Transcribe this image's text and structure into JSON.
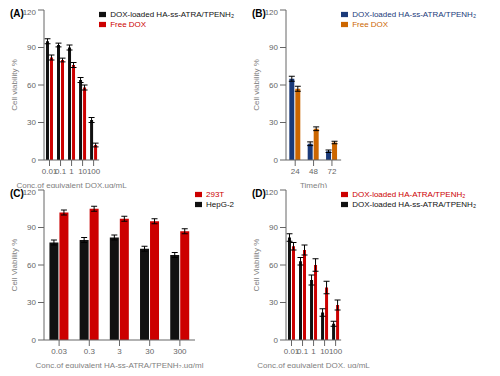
{
  "chart_data": [
    {
      "type": "bar",
      "title": "(A)",
      "xlabel": "Conc.of equivalent DOX.ug/mL",
      "ylabel": "Cell viability %",
      "categories": [
        "0.01",
        "0.1",
        "1",
        "10",
        "100"
      ],
      "series": [
        {
          "name": "DOX-loaded HA-ss-ATRA/TPENH₂",
          "color": "#111111",
          "values": [
            95,
            92,
            90,
            64,
            32
          ],
          "errors": [
            2,
            1.5,
            2,
            2,
            2
          ]
        },
        {
          "name": "Free DOX",
          "color": "#cc0000",
          "values": [
            82,
            80,
            76,
            58,
            12
          ],
          "errors": [
            2,
            1.5,
            2,
            2,
            1.5
          ]
        }
      ],
      "ylim": [
        0,
        120
      ],
      "yticks": [
        0,
        30,
        60,
        90,
        120
      ],
      "legend": "upper right",
      "grid": false
    },
    {
      "type": "bar",
      "title": "(B)",
      "xlabel": "Time(h)",
      "ylabel": "Cell viability %",
      "categories": [
        "24",
        "48",
        "72"
      ],
      "series": [
        {
          "name": "DOX-loaded HA-ss-ATRA/TPENH₂",
          "color": "#1a3a7a",
          "values": [
            65,
            13,
            7
          ],
          "errors": [
            2,
            1.5,
            1
          ]
        },
        {
          "name": "Free DOX",
          "color": "#cc6600",
          "values": [
            57,
            25,
            14
          ],
          "errors": [
            2,
            1.5,
            1
          ]
        }
      ],
      "ylim": [
        0,
        120
      ],
      "yticks": [
        0,
        30,
        60,
        90,
        120
      ],
      "legend": "upper right",
      "grid": false
    },
    {
      "type": "bar",
      "title": "(C)",
      "xlabel": "Conc.of equivalent HA-ss-ATRA/TPENH₂.ug/ml",
      "ylabel": "Cell Viability %",
      "categories": [
        "0.03",
        "0.3",
        "3",
        "30",
        "300"
      ],
      "series": [
        {
          "name": "HepG-2",
          "color": "#111111",
          "values": [
            78,
            80,
            82,
            73,
            68
          ],
          "errors": [
            2,
            2,
            2,
            2,
            2
          ]
        },
        {
          "name": "293T",
          "color": "#cc0000",
          "values": [
            102,
            105,
            97,
            95,
            87
          ],
          "errors": [
            2,
            2,
            2,
            2,
            2
          ]
        }
      ],
      "ylim": [
        0,
        120
      ],
      "yticks": [
        0,
        30,
        60,
        90,
        120
      ],
      "legend": "upper right",
      "grid": false
    },
    {
      "type": "bar",
      "title": "(D)",
      "xlabel": "Conc.of equivalent DOX. ug/mL",
      "ylabel": "Cell Viability %",
      "categories": [
        "0.01",
        "0.1",
        "1",
        "10",
        "100"
      ],
      "series": [
        {
          "name": "DOX-loaded HA-ss-ATRA/TPENH₂",
          "color": "#111111",
          "values": [
            82,
            63,
            48,
            22,
            13
          ],
          "errors": [
            3,
            3,
            4,
            3,
            2
          ]
        },
        {
          "name": "DOX-loaded HA-ATRA/TPENH₂",
          "color": "#cc0000",
          "values": [
            75,
            72,
            60,
            42,
            28
          ],
          "errors": [
            3,
            4,
            5,
            5,
            4
          ]
        }
      ],
      "ylim": [
        0,
        120
      ],
      "yticks": [
        0,
        30,
        60,
        90,
        120
      ],
      "legend": "upper right",
      "grid": false
    }
  ]
}
